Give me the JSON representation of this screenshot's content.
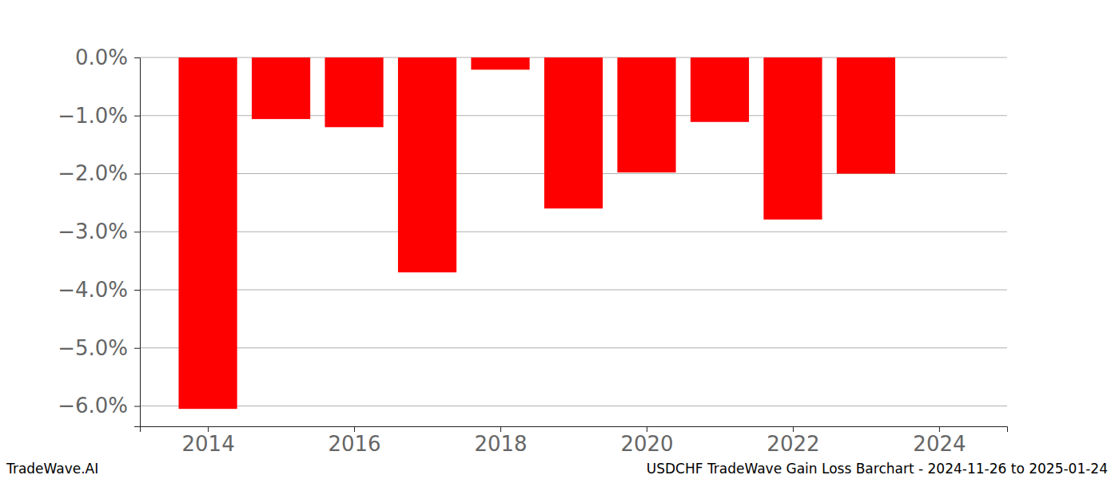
{
  "chart_data": {
    "type": "bar",
    "title": "USDCHF TradeWave Gain Loss Barchart - 2024-11-26 to 2025-01-24",
    "source": "TradeWave.AI",
    "x": [
      2014,
      2015,
      2016,
      2017,
      2018,
      2019,
      2020,
      2021,
      2022,
      2023
    ],
    "values": [
      -6.05,
      -1.06,
      -1.2,
      -3.7,
      -0.21,
      -2.6,
      -1.98,
      -1.11,
      -2.79,
      -2.0
    ],
    "color": "#ff0000",
    "xlim": [
      2013.07,
      2024.93
    ],
    "xticks": [
      2014,
      2016,
      2018,
      2020,
      2022,
      2024
    ],
    "ylim": [
      -6.35,
      0
    ],
    "yticks": [
      {
        "value": 0,
        "label": "0.0%"
      },
      {
        "value": -1,
        "label": "−1.0%"
      },
      {
        "value": -2,
        "label": "−2.0%"
      },
      {
        "value": -3,
        "label": "−3.0%"
      },
      {
        "value": -4,
        "label": "−4.0%"
      },
      {
        "value": -5,
        "label": "−5.0%"
      },
      {
        "value": -6,
        "label": "−6.0%"
      }
    ],
    "grid": true
  }
}
